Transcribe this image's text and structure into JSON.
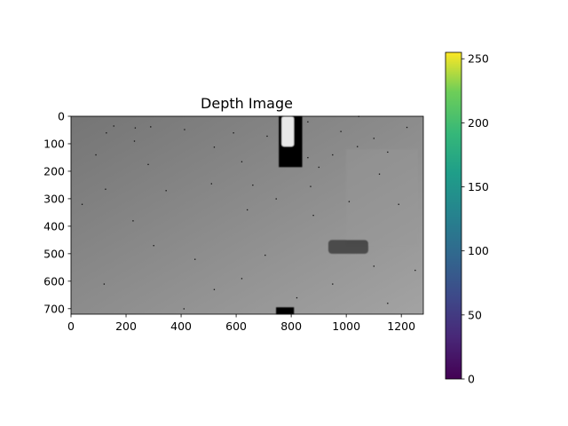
{
  "chart_data": {
    "type": "heatmap",
    "title": "Depth Image",
    "xlabel": "",
    "ylabel": "",
    "xlim": [
      0,
      1280
    ],
    "ylim": [
      720,
      0
    ],
    "x_ticks": [
      0,
      200,
      400,
      600,
      800,
      1000,
      1200
    ],
    "y_ticks": [
      0,
      100,
      200,
      300,
      400,
      500,
      600,
      700
    ],
    "colorbar": {
      "colormap": "viridis",
      "range": [
        0,
        255
      ],
      "ticks": [
        0,
        50,
        100,
        150,
        200,
        250
      ]
    },
    "image": {
      "display_colormap": "gray",
      "background_gradient": {
        "top_left_color": "#757575",
        "bottom_right_color": "#a3a3a3"
      },
      "regions": [
        {
          "name": "dark-object",
          "x": [
            755,
            840
          ],
          "y": [
            0,
            185
          ],
          "color": "#000000"
        },
        {
          "name": "bright-spot",
          "x": [
            765,
            810
          ],
          "y": [
            0,
            110
          ],
          "color": "#e8e8e8"
        },
        {
          "name": "dark-smear",
          "x": [
            935,
            1080
          ],
          "y": [
            450,
            500
          ],
          "color": "#303030"
        },
        {
          "name": "lighter-panel",
          "x": [
            1000,
            1260
          ],
          "y": [
            120,
            470
          ],
          "color": "#989898"
        },
        {
          "name": "bottom-dark-spot",
          "x": [
            745,
            810
          ],
          "y": [
            695,
            720
          ],
          "color": "#000000"
        }
      ],
      "speckles": [
        [
          128,
          60
        ],
        [
          233,
          42
        ],
        [
          289,
          38
        ],
        [
          412,
          48
        ],
        [
          520,
          112
        ],
        [
          590,
          60
        ],
        [
          712,
          72
        ],
        [
          860,
          20
        ],
        [
          1045,
          0
        ],
        [
          1100,
          80
        ],
        [
          1150,
          130
        ],
        [
          1220,
          40
        ],
        [
          980,
          55
        ],
        [
          1040,
          110
        ],
        [
          90,
          140
        ],
        [
          40,
          320
        ],
        [
          125,
          265
        ],
        [
          225,
          380
        ],
        [
          345,
          270
        ],
        [
          510,
          245
        ],
        [
          620,
          165
        ],
        [
          640,
          340
        ],
        [
          660,
          250
        ],
        [
          745,
          300
        ],
        [
          870,
          255
        ],
        [
          900,
          185
        ],
        [
          880,
          360
        ],
        [
          950,
          140
        ],
        [
          1120,
          210
        ],
        [
          1190,
          320
        ],
        [
          280,
          175
        ],
        [
          230,
          90
        ],
        [
          155,
          35
        ],
        [
          300,
          470
        ],
        [
          450,
          520
        ],
        [
          620,
          590
        ],
        [
          820,
          660
        ],
        [
          950,
          610
        ],
        [
          1150,
          680
        ],
        [
          1250,
          560
        ],
        [
          520,
          630
        ],
        [
          410,
          700
        ],
        [
          120,
          610
        ],
        [
          1100,
          545
        ],
        [
          705,
          505
        ],
        [
          1010,
          310
        ],
        [
          860,
          150
        ]
      ]
    }
  }
}
